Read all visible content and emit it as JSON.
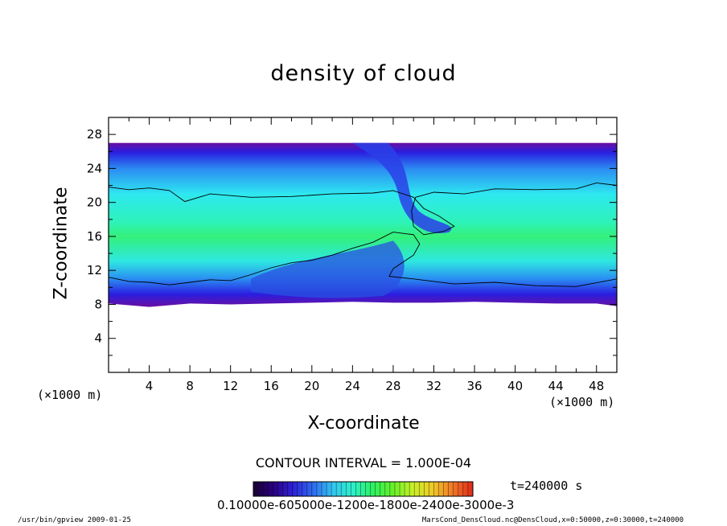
{
  "chart_data": {
    "type": "heatmap",
    "title": "density of cloud",
    "xlabel": "X-coordinate",
    "ylabel": "Z-coordinate",
    "x_unit": "(×1000 m)",
    "y_unit": "(×1000 m)",
    "xlim": [
      0,
      50
    ],
    "ylim": [
      0,
      30
    ],
    "x_ticks": [
      4,
      8,
      12,
      16,
      20,
      24,
      28,
      32,
      36,
      40,
      44,
      48
    ],
    "y_ticks": [
      4,
      8,
      12,
      16,
      20,
      24,
      28
    ],
    "cloud_layer": {
      "bottom_km": [
        [
          0,
          8.1
        ],
        [
          4,
          7.7
        ],
        [
          8,
          8.1
        ],
        [
          12,
          8.0
        ],
        [
          16,
          8.1
        ],
        [
          20,
          8.2
        ],
        [
          24,
          8.3
        ],
        [
          28,
          8.2
        ],
        [
          32,
          8.2
        ],
        [
          36,
          8.3
        ],
        [
          40,
          8.2
        ],
        [
          44,
          8.1
        ],
        [
          48,
          8.1
        ],
        [
          50,
          7.8
        ]
      ],
      "top_km": 27.0,
      "contour_upper_km": [
        [
          0,
          21.8
        ],
        [
          2,
          21.5
        ],
        [
          4,
          21.7
        ],
        [
          6,
          21.4
        ],
        [
          7.5,
          20.1
        ],
        [
          10,
          21.0
        ],
        [
          14,
          20.6
        ],
        [
          18,
          20.7
        ],
        [
          22,
          21.0
        ],
        [
          26,
          21.1
        ],
        [
          28,
          21.4
        ],
        [
          30,
          20.6
        ],
        [
          31,
          19.3
        ],
        [
          32.5,
          18.4
        ],
        [
          34,
          17.2
        ],
        [
          33,
          16.6
        ],
        [
          31,
          16.2
        ],
        [
          30,
          17.2
        ],
        [
          29.8,
          19.0
        ],
        [
          30.2,
          20.6
        ],
        [
          32,
          21.2
        ],
        [
          35,
          21.0
        ],
        [
          38,
          21.6
        ],
        [
          42,
          21.5
        ],
        [
          46,
          21.6
        ],
        [
          48,
          22.3
        ],
        [
          50,
          22.0
        ]
      ],
      "contour_lower_km": [
        [
          0,
          11.2
        ],
        [
          2,
          10.7
        ],
        [
          4,
          10.6
        ],
        [
          6,
          10.3
        ],
        [
          8,
          10.6
        ],
        [
          10,
          10.9
        ],
        [
          12,
          10.8
        ],
        [
          14,
          11.5
        ],
        [
          16,
          12.3
        ],
        [
          18,
          12.9
        ],
        [
          20,
          13.2
        ],
        [
          22,
          13.8
        ],
        [
          24,
          14.6
        ],
        [
          26,
          15.3
        ],
        [
          28,
          16.5
        ],
        [
          30,
          16.2
        ],
        [
          30.6,
          15.1
        ],
        [
          30,
          13.8
        ],
        [
          28,
          12.2
        ],
        [
          27.6,
          11.3
        ],
        [
          30,
          11.0
        ],
        [
          34,
          10.4
        ],
        [
          38,
          10.6
        ],
        [
          42,
          10.2
        ],
        [
          46,
          10.1
        ],
        [
          50,
          11.0
        ]
      ]
    },
    "colorbar": {
      "tick_labels": "0.10000e-605000e-1200e-1800e-2400e-3000e-3",
      "colors": [
        "#1a0033",
        "#2a0080",
        "#2d22d8",
        "#2e6cf0",
        "#33c6f0",
        "#2ef0c8",
        "#2ef060",
        "#66f028",
        "#c8f028",
        "#f0c828",
        "#f07828",
        "#e02818"
      ]
    },
    "contour_interval": "CONTOUR INTERVAL = 1.000E-04",
    "time": "t=240000 s",
    "legend": "none",
    "grid": false
  },
  "footer": {
    "left": "/usr/bin/gpview  2009-01-25",
    "right": "MarsCond_DensCloud.nc@DensCloud,x=0:50000,z=0:30000,t=240000"
  }
}
